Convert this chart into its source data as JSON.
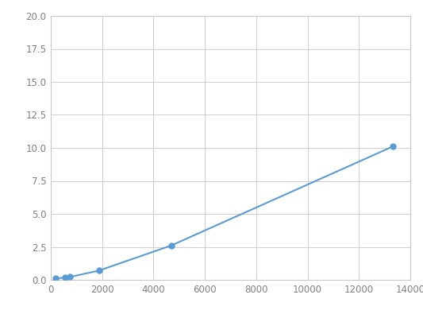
{
  "x": [
    188,
    563,
    750,
    1875,
    4688,
    13313
  ],
  "y": [
    0.1,
    0.18,
    0.22,
    0.7,
    2.6,
    10.1
  ],
  "line_color": "#5B9BD5",
  "marker_color": "#5B9BD5",
  "marker_size": 5,
  "line_width": 1.5,
  "xlim": [
    0,
    14000
  ],
  "ylim": [
    0,
    20
  ],
  "xticks": [
    0,
    2000,
    4000,
    6000,
    8000,
    10000,
    12000,
    14000
  ],
  "yticks": [
    0.0,
    2.5,
    5.0,
    7.5,
    10.0,
    12.5,
    15.0,
    17.5,
    20.0
  ],
  "grid_color": "#c8c8c8",
  "bg_color": "#ffffff",
  "tick_label_fontsize": 8.5,
  "tick_label_color": "#808080"
}
